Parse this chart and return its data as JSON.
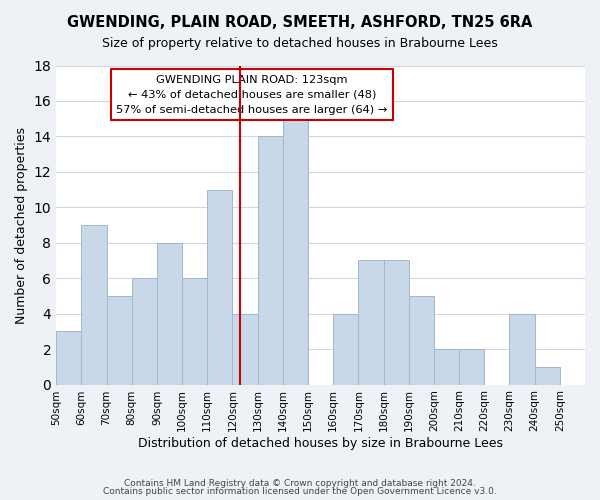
{
  "title": "GWENDING, PLAIN ROAD, SMEETH, ASHFORD, TN25 6RA",
  "subtitle": "Size of property relative to detached houses in Brabourne Lees",
  "xlabel": "Distribution of detached houses by size in Brabourne Lees",
  "ylabel": "Number of detached properties",
  "bar_edges": [
    50,
    60,
    70,
    80,
    90,
    100,
    110,
    120,
    130,
    140,
    150,
    160,
    170,
    180,
    190,
    200,
    210,
    220,
    230,
    240,
    250,
    260
  ],
  "bar_heights": [
    3,
    9,
    5,
    6,
    8,
    6,
    11,
    4,
    14,
    15,
    0,
    4,
    7,
    7,
    5,
    2,
    2,
    0,
    4,
    1,
    0
  ],
  "bar_color": "#c8d8e8",
  "bar_edgecolor": "#a0b8cc",
  "vline_x": 123,
  "vline_color": "#cc0000",
  "ylim": [
    0,
    18
  ],
  "yticks": [
    0,
    2,
    4,
    6,
    8,
    10,
    12,
    14,
    16,
    18
  ],
  "annotation_title": "GWENDING PLAIN ROAD: 123sqm",
  "annotation_line1": "← 43% of detached houses are smaller (48)",
  "annotation_line2": "57% of semi-detached houses are larger (64) →",
  "footer_line1": "Contains HM Land Registry data © Crown copyright and database right 2024.",
  "footer_line2": "Contains public sector information licensed under the Open Government Licence v3.0.",
  "tick_labels": [
    "50sqm",
    "60sqm",
    "70sqm",
    "80sqm",
    "90sqm",
    "100sqm",
    "110sqm",
    "120sqm",
    "130sqm",
    "140sqm",
    "150sqm",
    "160sqm",
    "170sqm",
    "180sqm",
    "190sqm",
    "200sqm",
    "210sqm",
    "220sqm",
    "230sqm",
    "240sqm",
    "250sqm"
  ],
  "bg_color": "#eef2f6",
  "plot_bg_color": "#ffffff",
  "grid_color": "#d0d8e0"
}
